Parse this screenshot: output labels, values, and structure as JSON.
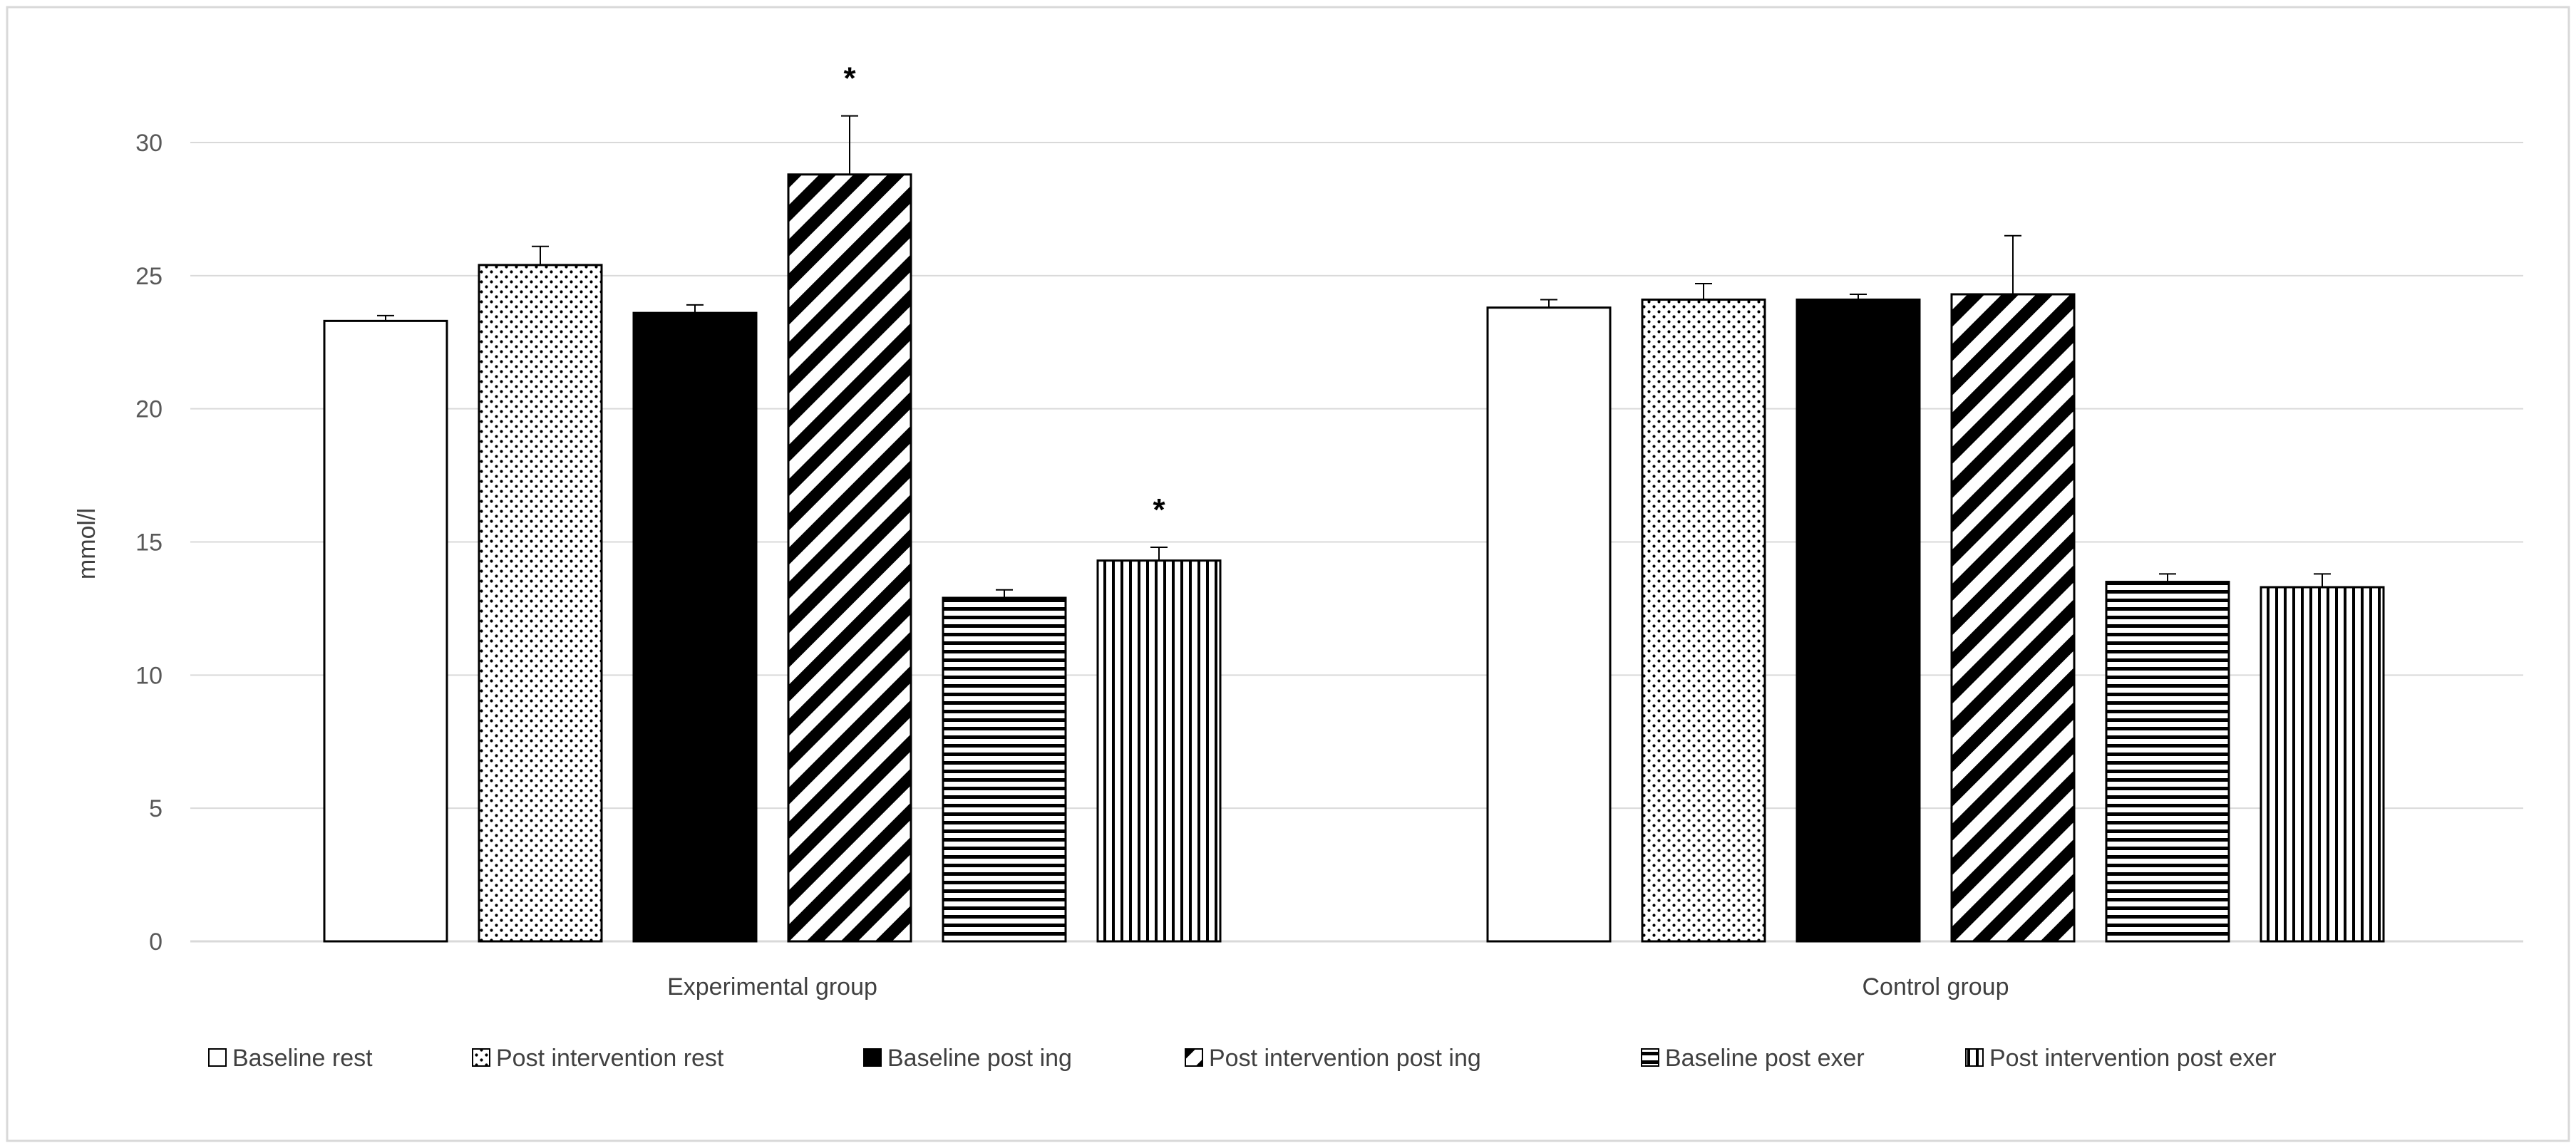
{
  "chart_data": {
    "type": "bar",
    "title": "",
    "xlabel": "",
    "ylabel": "mmol/l",
    "ylim": [
      0,
      30
    ],
    "yticks": [
      0,
      5,
      10,
      15,
      20,
      25,
      30
    ],
    "grid": true,
    "legend_position": "bottom",
    "categories": [
      "Experimental group",
      "Control group"
    ],
    "series": [
      {
        "name": "Baseline rest",
        "pattern": "blank",
        "values": [
          23.3,
          23.8
        ],
        "errors": [
          0.2,
          0.3
        ],
        "significant": [
          false,
          false
        ]
      },
      {
        "name": "Post intervention rest",
        "pattern": "dots",
        "values": [
          25.4,
          24.1
        ],
        "errors": [
          0.7,
          0.6
        ],
        "significant": [
          false,
          false
        ]
      },
      {
        "name": "Baseline post ing",
        "pattern": "solid",
        "values": [
          23.6,
          24.1
        ],
        "errors": [
          0.3,
          0.2
        ],
        "significant": [
          false,
          false
        ]
      },
      {
        "name": "Post intervention post ing",
        "pattern": "diagonal",
        "values": [
          28.8,
          24.3
        ],
        "errors": [
          2.2,
          2.2
        ],
        "significant": [
          true,
          false
        ]
      },
      {
        "name": "Baseline post exer",
        "pattern": "horizontal",
        "values": [
          12.9,
          13.5
        ],
        "errors": [
          0.3,
          0.3
        ],
        "significant": [
          false,
          false
        ]
      },
      {
        "name": "Post intervention post exer",
        "pattern": "vertical",
        "values": [
          14.3,
          13.3
        ],
        "errors": [
          0.5,
          0.5
        ],
        "significant": [
          true,
          false
        ]
      }
    ],
    "significance_marker": "*"
  }
}
